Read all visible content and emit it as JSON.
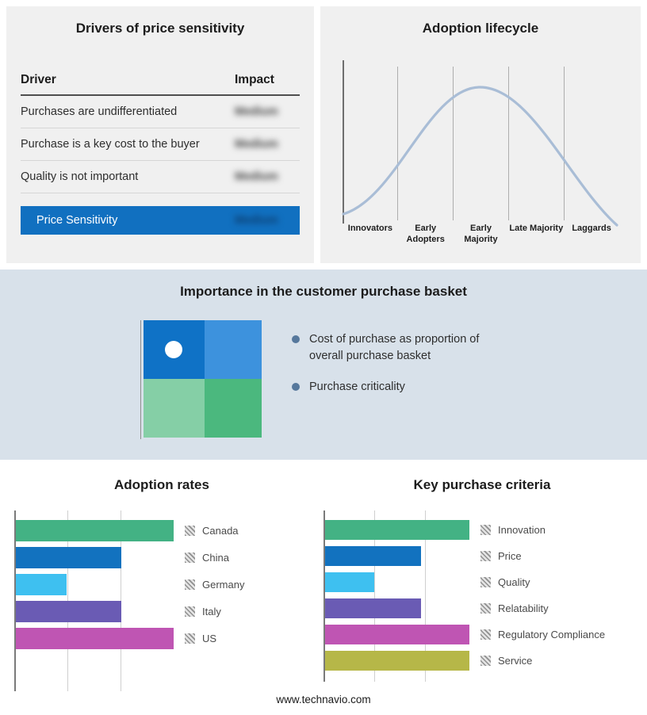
{
  "colors": {
    "accent_blue": "#1170c0",
    "panel_gray": "#f0f0f0",
    "band_blue": "#d8e1ea",
    "curve_blue": "#a9bdd6",
    "green": "#43b284",
    "blue": "#1272bf",
    "cyan": "#3ec0f0",
    "purple": "#6a5bb4",
    "magenta": "#bf55b3",
    "olive": "#b6b748"
  },
  "basket": {
    "title": "Importance in the customer purchase basket",
    "bullets": [
      "Cost of purchase as proportion of overall purchase basket",
      "Purchase criticality"
    ]
  },
  "footer": {
    "url": "www.technavio.com"
  },
  "chart_data": [
    {
      "type": "table",
      "title": "Drivers of price sensitivity",
      "columns": [
        "Driver",
        "Impact"
      ],
      "rows": [
        [
          "Purchases are undifferentiated",
          "Medium"
        ],
        [
          "Purchase is a key cost to the buyer",
          "Medium"
        ],
        [
          "Quality is not important",
          "Medium"
        ]
      ],
      "highlight_row": [
        "Price Sensitivity",
        "Medium"
      ],
      "note": "Impact values appear blurred/redacted in the source image"
    },
    {
      "type": "area",
      "title": "Adoption lifecycle",
      "categories": [
        "Innovators",
        "Early Adopters",
        "Early Majority",
        "Late Majority",
        "Laggards"
      ],
      "values": [
        8,
        52,
        100,
        52,
        8
      ],
      "note": "Stylized bell curve peaking at Early Majority; unlabeled axes"
    },
    {
      "type": "bar",
      "orientation": "horizontal",
      "title": "Adoption rates",
      "categories": [
        "Canada",
        "China",
        "Germany",
        "Italy",
        "US"
      ],
      "values": [
        100,
        67,
        33,
        67,
        100
      ],
      "colors": [
        "#43b284",
        "#1272bf",
        "#3ec0f0",
        "#6a5bb4",
        "#bf55b3"
      ],
      "xlim": [
        0,
        100
      ],
      "grid": true,
      "legend_position": "right",
      "note": "Unlabeled axis; values estimated from gridlines"
    },
    {
      "type": "bar",
      "orientation": "horizontal",
      "title": "Key purchase criteria",
      "categories": [
        "Innovation",
        "Price",
        "Quality",
        "Relatability",
        "Regulatory Compliance",
        "Service"
      ],
      "values": [
        100,
        67,
        35,
        67,
        100,
        100
      ],
      "colors": [
        "#43b284",
        "#1272bf",
        "#3ec0f0",
        "#6a5bb4",
        "#bf55b3",
        "#b6b748"
      ],
      "xlim": [
        0,
        100
      ],
      "grid": true,
      "legend_position": "right",
      "note": "Unlabeled axis; values estimated from gridlines"
    }
  ]
}
